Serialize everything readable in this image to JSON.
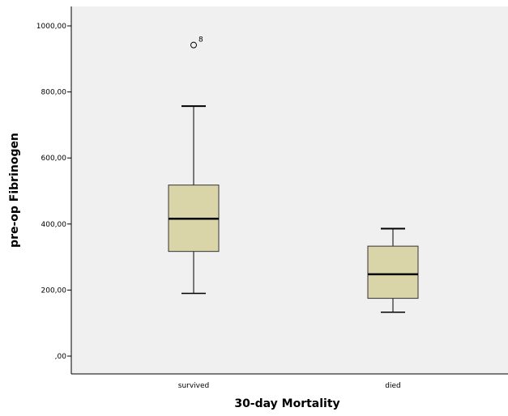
{
  "chart_data": {
    "type": "boxplot",
    "title": "",
    "xlabel": "30-day Mortality",
    "ylabel": "pre-op Fibrinogen",
    "ylim": [
      -50,
      1060
    ],
    "yticks": [
      {
        "value": 0,
        "label": ",00"
      },
      {
        "value": 200,
        "label": "200,00"
      },
      {
        "value": 400,
        "label": "400,00"
      },
      {
        "value": 600,
        "label": "600,00"
      },
      {
        "value": 800,
        "label": "800,00"
      },
      {
        "value": 1000,
        "label": "1000,00"
      }
    ],
    "categories": [
      "survived",
      "died"
    ],
    "boxes": [
      {
        "category": "survived",
        "min": 190,
        "q1": 317,
        "median": 416,
        "q3": 518,
        "max": 757,
        "outliers": [
          {
            "value": 942,
            "label": "8"
          }
        ]
      },
      {
        "category": "died",
        "min": 133,
        "q1": 175,
        "median": 248,
        "q3": 333,
        "max": 386,
        "outliers": []
      }
    ],
    "grid": false,
    "colors": {
      "plot_background": "#f0f0f0",
      "box_fill": "#d9d5a9",
      "box_stroke": "#333333",
      "median": "#000000"
    }
  }
}
